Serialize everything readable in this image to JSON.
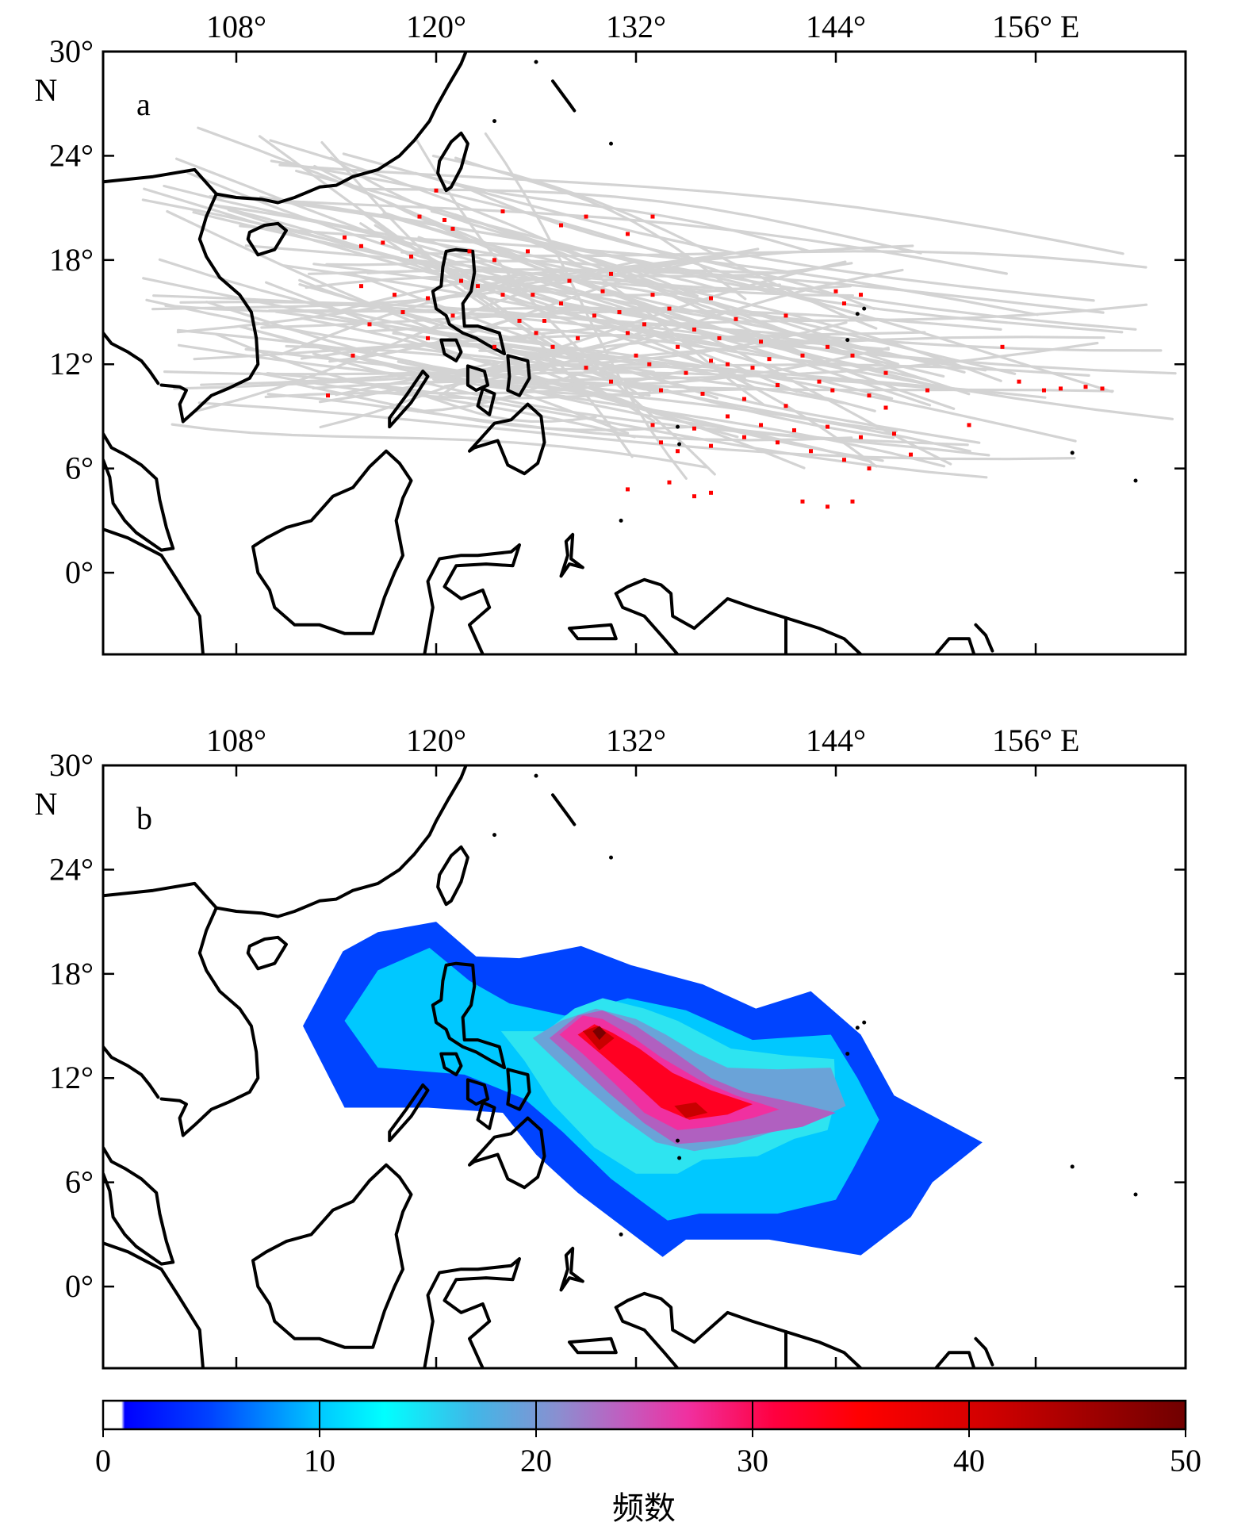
{
  "panels": [
    {
      "id": "a",
      "label": "a",
      "lon_ticks": [
        "108°",
        "120°",
        "132°",
        "144°",
        "156° E"
      ],
      "lat_ticks": [
        "30°",
        "24°",
        "18°",
        "12°",
        "6°",
        "0°"
      ],
      "lat_unit": "N"
    },
    {
      "id": "b",
      "label": "b",
      "lon_ticks": [
        "108°",
        "120°",
        "132°",
        "144°",
        "156° E"
      ],
      "lat_ticks": [
        "30°",
        "24°",
        "18°",
        "12°",
        "6°",
        "0°"
      ],
      "lat_unit": "N"
    }
  ],
  "map_extent": {
    "lon": [
      100,
      165
    ],
    "lat": [
      -4.7,
      30
    ]
  },
  "colorbar": {
    "title": "频数",
    "ticks": [
      "0",
      "10",
      "20",
      "30",
      "40",
      "50"
    ],
    "range": [
      0,
      50
    ]
  },
  "chart_data": {
    "type": "heatmap",
    "panels": {
      "a": {
        "content": "typhoon tracks (gray lines) with red genesis points over the Western North Pacific / South China Sea",
        "genesis_points_lon_lat": [
          [
            114.5,
            19.3
          ],
          [
            115.5,
            18.8
          ],
          [
            116.8,
            19.0
          ],
          [
            115.5,
            16.5
          ],
          [
            117.5,
            16.0
          ],
          [
            116.0,
            14.3
          ],
          [
            115.0,
            12.5
          ],
          [
            113.5,
            10.2
          ],
          [
            118.5,
            18.2
          ],
          [
            119.0,
            20.5
          ],
          [
            120.5,
            20.3
          ],
          [
            121.0,
            19.8
          ],
          [
            122.0,
            18.5
          ],
          [
            120.0,
            22.0
          ],
          [
            118.0,
            15.0
          ],
          [
            119.5,
            15.8
          ],
          [
            121.5,
            16.8
          ],
          [
            123.5,
            18.0
          ],
          [
            124.0,
            20.8
          ],
          [
            125.5,
            18.5
          ],
          [
            125.8,
            16.0
          ],
          [
            126.5,
            14.5
          ],
          [
            127.5,
            15.5
          ],
          [
            128.0,
            16.8
          ],
          [
            128.5,
            13.5
          ],
          [
            129.5,
            14.8
          ],
          [
            130.0,
            16.2
          ],
          [
            130.5,
            17.2
          ],
          [
            131.0,
            15.0
          ],
          [
            131.5,
            13.8
          ],
          [
            132.0,
            12.5
          ],
          [
            132.5,
            14.3
          ],
          [
            133.0,
            16.0
          ],
          [
            134.0,
            15.2
          ],
          [
            134.5,
            13.0
          ],
          [
            135.0,
            11.5
          ],
          [
            135.5,
            14.0
          ],
          [
            136.5,
            15.8
          ],
          [
            137.0,
            13.5
          ],
          [
            137.5,
            12.0
          ],
          [
            138.0,
            14.6
          ],
          [
            139.0,
            11.8
          ],
          [
            139.5,
            13.3
          ],
          [
            140.5,
            10.8
          ],
          [
            141.0,
            14.8
          ],
          [
            142.0,
            12.5
          ],
          [
            143.0,
            11.0
          ],
          [
            143.5,
            13.0
          ],
          [
            144.0,
            16.2
          ],
          [
            144.5,
            15.5
          ],
          [
            145.5,
            16.0
          ],
          [
            146.0,
            10.2
          ],
          [
            147.0,
            9.5
          ],
          [
            147.5,
            8.0
          ],
          [
            148.5,
            6.8
          ],
          [
            149.5,
            10.5
          ],
          [
            133.0,
            8.5
          ],
          [
            133.5,
            7.5
          ],
          [
            134.5,
            7.0
          ],
          [
            135.5,
            8.3
          ],
          [
            136.5,
            7.3
          ],
          [
            137.5,
            9.0
          ],
          [
            138.5,
            7.8
          ],
          [
            139.5,
            8.5
          ],
          [
            140.5,
            7.5
          ],
          [
            141.5,
            8.2
          ],
          [
            142.5,
            7.0
          ],
          [
            143.5,
            8.4
          ],
          [
            144.5,
            6.5
          ],
          [
            145.5,
            7.8
          ],
          [
            146.0,
            6.0
          ],
          [
            131.5,
            4.8
          ],
          [
            134.0,
            5.2
          ],
          [
            135.5,
            4.4
          ],
          [
            136.5,
            4.6
          ],
          [
            142.0,
            4.1
          ],
          [
            143.5,
            3.8
          ],
          [
            145.0,
            4.1
          ],
          [
            152.0,
            8.5
          ],
          [
            154.0,
            13.0
          ],
          [
            155.0,
            11.0
          ],
          [
            156.5,
            10.5
          ],
          [
            157.5,
            10.6
          ],
          [
            159.0,
            10.7
          ],
          [
            160.0,
            10.6
          ],
          [
            127.5,
            20.0
          ],
          [
            129.0,
            20.5
          ],
          [
            131.5,
            19.5
          ],
          [
            133.0,
            20.5
          ],
          [
            122.5,
            16.5
          ],
          [
            124.0,
            16.0
          ],
          [
            126.0,
            13.8
          ],
          [
            129.0,
            11.8
          ],
          [
            130.5,
            11.0
          ],
          [
            133.5,
            10.5
          ],
          [
            136.0,
            10.3
          ],
          [
            138.5,
            10.0
          ],
          [
            141.0,
            9.6
          ],
          [
            143.8,
            10.5
          ],
          [
            145.0,
            12.5
          ],
          [
            147.0,
            11.5
          ],
          [
            140.0,
            12.3
          ],
          [
            136.5,
            12.2
          ],
          [
            132.8,
            12.0
          ],
          [
            127.0,
            13.0
          ],
          [
            125.0,
            14.5
          ],
          [
            121.0,
            14.8
          ],
          [
            123.5,
            13.0
          ],
          [
            119.5,
            13.5
          ]
        ]
      },
      "b": {
        "content": "gridded genesis frequency (filled contours)",
        "contour_levels": [
          1,
          5,
          10,
          15,
          20,
          25,
          30,
          40,
          45
        ]
      }
    },
    "colorbar_range": [
      0,
      50
    ]
  }
}
